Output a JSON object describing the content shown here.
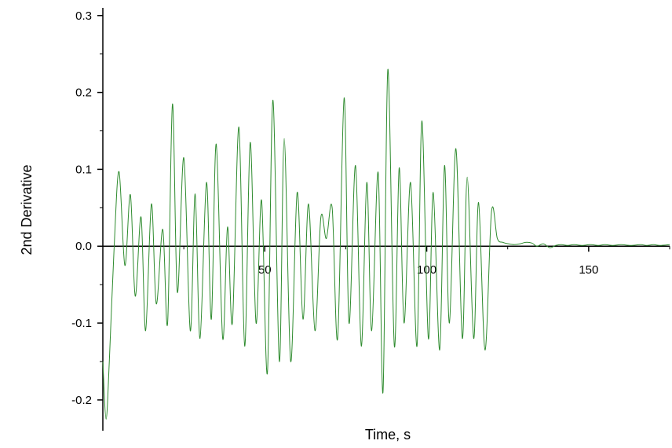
{
  "chart_data": {
    "type": "line",
    "xlabel": "Time, s",
    "ylabel": "2nd Derivative",
    "xlim": [
      0,
      175
    ],
    "ylim": [
      -0.24,
      0.31
    ],
    "xticks": [
      50,
      100,
      150
    ],
    "xtick_labels": [
      "50",
      "100",
      "150"
    ],
    "yticks": [
      0.3,
      0.2,
      0.1,
      0.0,
      -0.1,
      -0.2
    ],
    "ytick_labels": [
      "0.3",
      "0.2",
      "0.1",
      "0.0",
      "-0.1",
      "-0.2"
    ],
    "grid": false,
    "line_color": "#2e8b2e",
    "series": [
      {
        "x": [
          0.0,
          1.0,
          2.0,
          3.5,
          5.0,
          6.8,
          8.5,
          10.0,
          11.8,
          13.2,
          15.0,
          16.5,
          18.5,
          20.0,
          21.5,
          23.0,
          25.0,
          27.0,
          28.5,
          30.0,
          32.0,
          33.5,
          35.0,
          37.0,
          38.5,
          40.0,
          42.0,
          43.8,
          45.5,
          47.3,
          49.0,
          50.8,
          52.5,
          54.5,
          56.0,
          58.0,
          60.0,
          61.8,
          63.5,
          65.5,
          67.3,
          69.0,
          70.8,
          72.5,
          74.5,
          76.0,
          78.0,
          79.8,
          81.5,
          83.0,
          85.0,
          86.5,
          88.0,
          90.0,
          91.5,
          93.0,
          95.0,
          97.0,
          98.5,
          100.5,
          102.0,
          104.0,
          105.5,
          107.0,
          109.0,
          111.0,
          112.5,
          114.5,
          116.0,
          118.0,
          120.0,
          121.8,
          123.5,
          125.3,
          127.0,
          128.8,
          130.5,
          132.5,
          134.0,
          136.0,
          138.0,
          139.8,
          141.5,
          143.5,
          145.5,
          148.0,
          150.5,
          153.0,
          155.0,
          157.5,
          160.0,
          163.0,
          166.0,
          168.0,
          170.0,
          172.0,
          175.0
        ],
        "y": [
          -0.15,
          -0.225,
          -0.15,
          0.0,
          0.097,
          -0.025,
          0.067,
          -0.065,
          0.038,
          -0.11,
          0.055,
          -0.075,
          0.022,
          -0.1,
          0.185,
          -0.06,
          0.115,
          -0.11,
          0.068,
          -0.12,
          0.083,
          -0.095,
          0.133,
          -0.12,
          0.025,
          -0.1,
          0.155,
          -0.13,
          0.135,
          -0.1,
          0.06,
          -0.165,
          0.19,
          -0.15,
          0.14,
          -0.15,
          0.07,
          -0.095,
          0.055,
          -0.11,
          0.037,
          0.01,
          0.05,
          -0.12,
          0.193,
          -0.1,
          0.105,
          -0.13,
          0.083,
          -0.11,
          0.096,
          -0.19,
          0.23,
          -0.13,
          0.102,
          -0.1,
          0.083,
          -0.13,
          0.163,
          -0.12,
          0.07,
          -0.135,
          0.105,
          -0.1,
          0.127,
          -0.12,
          0.09,
          -0.12,
          0.057,
          -0.135,
          0.045,
          0.01,
          0.005,
          0.003,
          0.002,
          0.003,
          0.005,
          0.004,
          0.0,
          0.003,
          -0.002,
          0.001,
          0.002,
          0.001,
          0.002,
          0.001,
          0.002,
          0.001,
          0.002,
          0.001,
          0.002,
          0.001,
          0.002,
          0.001,
          0.002,
          0.001,
          0.002
        ]
      }
    ]
  }
}
